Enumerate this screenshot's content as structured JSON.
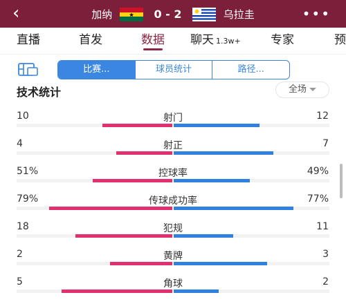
{
  "header": {
    "back_icon": "chevron-left-icon",
    "home_team": "加纳",
    "away_team": "乌拉圭",
    "score": "0 - 2",
    "more_icon": "more-icon",
    "bg_color": "#7b1f3a"
  },
  "tabs": [
    {
      "label": "直播"
    },
    {
      "label": "首发"
    },
    {
      "label": "数据",
      "active": true
    },
    {
      "label": "聊天",
      "badge": "1.3w+"
    },
    {
      "label": "专家"
    },
    {
      "label": "预"
    }
  ],
  "sub_tabs": {
    "layout_icon": "layout-icon",
    "items": [
      "比赛...",
      "球员统计",
      "路径..."
    ],
    "active_index": 0,
    "accent": "#3a86e0"
  },
  "section": {
    "title": "技术统计",
    "scope": "全场"
  },
  "colors": {
    "home": "#e0306e",
    "away": "#2f80e0"
  },
  "stats": [
    {
      "label": "射门",
      "home": "10",
      "away": "12",
      "home_share": 0.45,
      "away_share": 0.55
    },
    {
      "label": "射正",
      "home": "4",
      "away": "7",
      "home_share": 0.36,
      "away_share": 0.64
    },
    {
      "label": "控球率",
      "home": "51%",
      "away": "49%",
      "home_share": 0.51,
      "away_share": 0.49
    },
    {
      "label": "传球成功率",
      "home": "79%",
      "away": "77%",
      "home_share": 0.79,
      "away_share": 0.77
    },
    {
      "label": "犯规",
      "home": "18",
      "away": "11",
      "home_share": 0.62,
      "away_share": 0.38
    },
    {
      "label": "黄牌",
      "home": "2",
      "away": "3",
      "home_share": 0.4,
      "away_share": 0.6
    },
    {
      "label": "角球",
      "home": "5",
      "away": "2",
      "home_share": 0.71,
      "away_share": 0.29
    }
  ]
}
